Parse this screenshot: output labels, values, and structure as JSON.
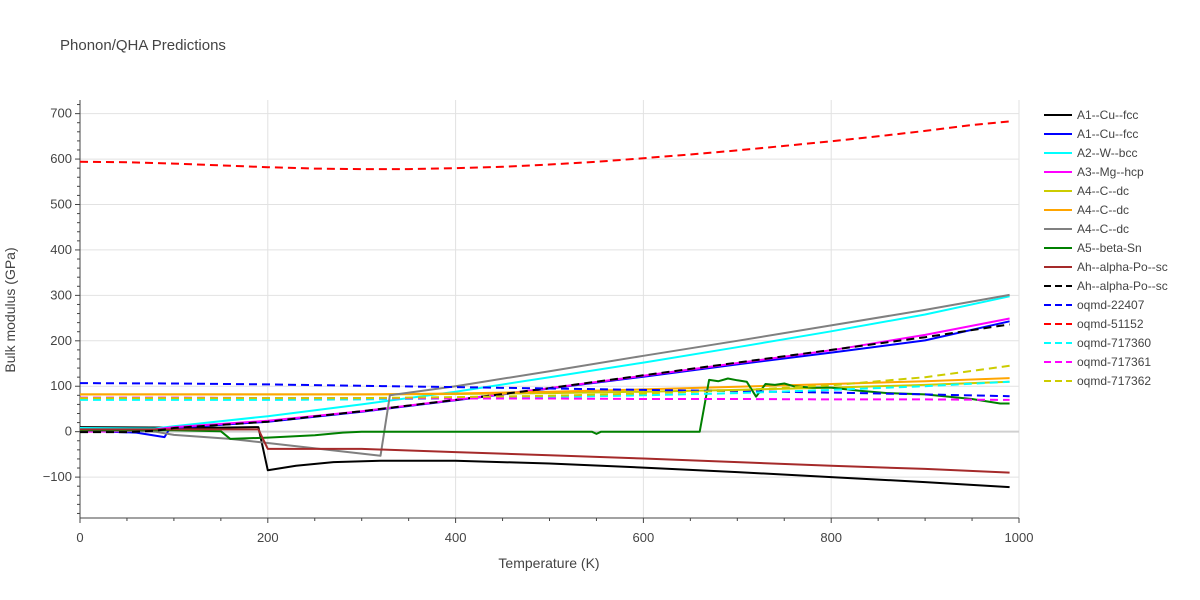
{
  "chart_data": {
    "type": "line",
    "title": "Phonon/QHA Predictions",
    "xlabel": "Temperature (K)",
    "ylabel": "Bulk modulus (GPa)",
    "xlim": [
      0,
      1000
    ],
    "ylim": [
      -190,
      730
    ],
    "xticks": [
      0,
      200,
      400,
      600,
      800,
      1000
    ],
    "yticks": [
      -100,
      0,
      100,
      200,
      300,
      400,
      500,
      600,
      700
    ],
    "ytick_labels": [
      "−100",
      "0",
      "100",
      "200",
      "300",
      "400",
      "500",
      "600",
      "700"
    ],
    "grid": true,
    "legend_position": "right",
    "series": [
      {
        "name": "A1--Cu--fcc",
        "color": "#000000",
        "dash": "solid",
        "x": [
          0,
          100,
          150,
          190,
          200,
          230,
          270,
          320,
          400,
          500,
          600,
          700,
          800,
          900,
          990
        ],
        "y": [
          10,
          9,
          9,
          10,
          -85,
          -75,
          -67,
          -64,
          -64,
          -70,
          -79,
          -89,
          -100,
          -111,
          -122
        ]
      },
      {
        "name": "A1--Cu--fcc",
        "color": "#0000ff",
        "dash": "solid",
        "x": [
          0,
          60,
          90,
          95,
          100,
          200,
          300,
          400,
          500,
          600,
          700,
          800,
          900,
          990
        ],
        "y": [
          2,
          -2,
          -12,
          5,
          8,
          22,
          44,
          69,
          95,
          121,
          148,
          174,
          201,
          243
        ]
      },
      {
        "name": "A2--W--bcc",
        "color": "#00ffff",
        "dash": "solid",
        "x": [
          0,
          80,
          100,
          200,
          300,
          400,
          500,
          600,
          700,
          800,
          900,
          990
        ],
        "y": [
          8,
          7,
          12,
          34,
          60,
          88,
          120,
          152,
          186,
          221,
          258,
          298
        ]
      },
      {
        "name": "A3--Mg--hcp",
        "color": "#ff00ff",
        "dash": "solid",
        "x": [
          0,
          50,
          80,
          100,
          200,
          300,
          400,
          500,
          600,
          700,
          800,
          900,
          990
        ],
        "y": [
          0,
          1,
          5,
          10,
          24,
          45,
          70,
          96,
          123,
          151,
          179,
          213,
          249
        ]
      },
      {
        "name": "A4--C--dc",
        "color": "#cccc00",
        "dash": "solid",
        "x": [
          0,
          100,
          200,
          300,
          400,
          500,
          600,
          700,
          800,
          900,
          990
        ],
        "y": [
          82,
          82,
          82,
          82,
          83,
          85,
          88,
          92,
          97,
          103,
          110
        ]
      },
      {
        "name": "A4--C--dc",
        "color": "#ffa500",
        "dash": "solid",
        "x": [
          0,
          100,
          200,
          300,
          400,
          500,
          600,
          700,
          800,
          900,
          990
        ],
        "y": [
          82,
          82,
          82,
          82,
          84,
          88,
          93,
          99,
          105,
          111,
          118
        ]
      },
      {
        "name": "A4--C--dc",
        "color": "#808080",
        "dash": "solid",
        "x": [
          0,
          60,
          80,
          100,
          160,
          200,
          320,
          330,
          400,
          500,
          600,
          700,
          800,
          900,
          990
        ],
        "y": [
          3,
          2,
          0,
          -7,
          -16,
          -25,
          -53,
          80,
          100,
          133,
          167,
          200,
          234,
          268,
          301
        ]
      },
      {
        "name": "A5--beta-Sn",
        "color": "#008000",
        "dash": "solid",
        "x": [
          0,
          50,
          100,
          150,
          160,
          200,
          250,
          280,
          300,
          310,
          400,
          500,
          545,
          550,
          555,
          565,
          600,
          660,
          670,
          680,
          690,
          700,
          710,
          720,
          730,
          740,
          750,
          760,
          780,
          800,
          830,
          860,
          900,
          950,
          980,
          990
        ],
        "y": [
          3,
          3,
          3,
          1,
          -16,
          -13,
          -8,
          -2,
          0,
          0,
          0,
          0,
          0,
          -5,
          0,
          0,
          0,
          0,
          114,
          111,
          117,
          113,
          110,
          77,
          105,
          103,
          106,
          100,
          97,
          97,
          90,
          85,
          82,
          72,
          62,
          62
        ]
      },
      {
        "name": "Ah--alpha-Po--sc",
        "color": "#a52a2a",
        "dash": "solid",
        "x": [
          0,
          100,
          150,
          190,
          200,
          300,
          400,
          500,
          600,
          700,
          800,
          900,
          990
        ],
        "y": [
          5,
          5,
          5,
          5,
          -38,
          -38,
          -45,
          -52,
          -59,
          -67,
          -75,
          -82,
          -90
        ]
      },
      {
        "name": "Ah--alpha-Po--sc",
        "color": "#000000",
        "dash": "dash",
        "x": [
          0,
          50,
          80,
          100,
          200,
          300,
          400,
          500,
          600,
          700,
          800,
          900,
          990
        ],
        "y": [
          -1,
          -1,
          2,
          8,
          22,
          45,
          70,
          96,
          124,
          152,
          180,
          208,
          236
        ]
      },
      {
        "name": "oqmd-22407",
        "color": "#0000ff",
        "dash": "dash",
        "x": [
          0,
          100,
          200,
          300,
          400,
          500,
          600,
          700,
          800,
          900,
          990
        ],
        "y": [
          107,
          106,
          104,
          101,
          98,
          95,
          92,
          89,
          86,
          82,
          78
        ]
      },
      {
        "name": "oqmd-51152",
        "color": "#ff0000",
        "dash": "dash",
        "x": [
          0,
          50,
          100,
          150,
          200,
          250,
          300,
          350,
          400,
          450,
          500,
          550,
          600,
          650,
          700,
          750,
          800,
          850,
          900,
          950,
          990
        ],
        "y": [
          594,
          593,
          590,
          586,
          582,
          579,
          578,
          578,
          580,
          583,
          588,
          594,
          602,
          610,
          619,
          629,
          639,
          650,
          662,
          675,
          683
        ]
      },
      {
        "name": "oqmd-717360",
        "color": "#00ffff",
        "dash": "dash",
        "x": [
          0,
          100,
          200,
          300,
          400,
          500,
          600,
          700,
          800,
          900,
          990
        ],
        "y": [
          70,
          70,
          70,
          71,
          73,
          76,
          80,
          85,
          92,
          100,
          110
        ]
      },
      {
        "name": "oqmd-717361",
        "color": "#ff00ff",
        "dash": "dash",
        "x": [
          0,
          100,
          200,
          300,
          400,
          500,
          600,
          700,
          800,
          900,
          990
        ],
        "y": [
          75,
          75,
          74,
          74,
          73,
          73,
          72,
          72,
          71,
          71,
          70
        ]
      },
      {
        "name": "oqmd-717362",
        "color": "#cccc00",
        "dash": "dash",
        "x": [
          0,
          100,
          200,
          300,
          400,
          500,
          600,
          700,
          800,
          900,
          990
        ],
        "y": [
          74,
          74,
          74,
          74,
          76,
          79,
          84,
          91,
          102,
          120,
          145
        ]
      }
    ]
  }
}
